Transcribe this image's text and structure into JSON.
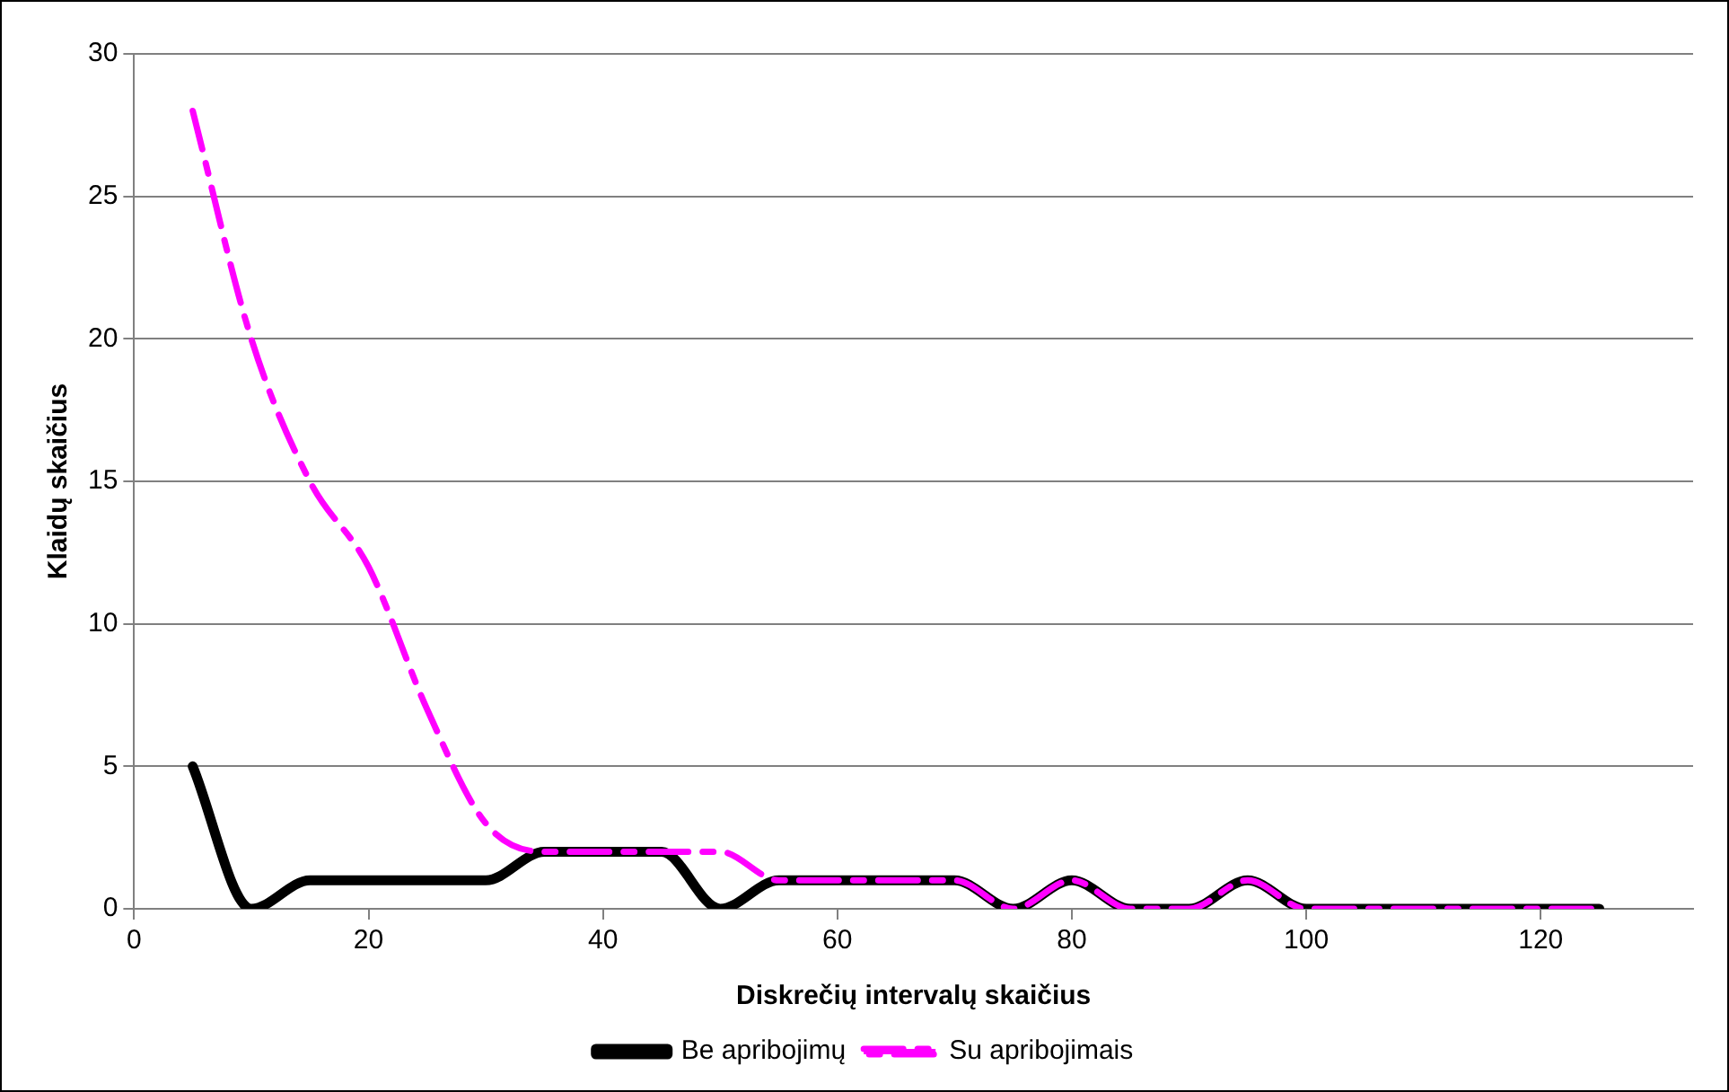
{
  "chart_data": {
    "type": "line",
    "xlabel": "Diskrečių intervalų skaičius",
    "ylabel": "Klaidų skaičius",
    "x": [
      5,
      10,
      15,
      20,
      25,
      30,
      35,
      40,
      45,
      50,
      55,
      60,
      65,
      70,
      75,
      80,
      85,
      90,
      95,
      100,
      105,
      110,
      115,
      120,
      125
    ],
    "series": [
      {
        "name": "Be apribojimų",
        "color": "#000000",
        "line_style": "solid",
        "values": [
          5,
          0,
          1,
          1,
          1,
          1,
          2,
          2,
          2,
          0,
          1,
          1,
          1,
          1,
          0,
          1,
          0,
          0,
          1,
          0,
          0,
          0,
          0,
          0,
          0
        ]
      },
      {
        "name": "Su apribojimais",
        "color": "#ff00ff",
        "line_style": "dashed",
        "values": [
          28,
          20,
          15,
          12,
          7,
          3,
          2,
          2,
          2,
          2,
          1,
          1,
          1,
          1,
          0,
          1,
          0,
          0,
          1,
          0,
          0,
          0,
          0,
          0,
          0
        ]
      }
    ],
    "xlim": [
      0,
      133
    ],
    "xticks": [
      0,
      20,
      40,
      60,
      80,
      100,
      120
    ],
    "ylim": [
      0,
      30
    ],
    "yticks": [
      0,
      5,
      10,
      15,
      20,
      25,
      30
    ],
    "grid": "y",
    "legend": "bottom",
    "marker": "none"
  }
}
